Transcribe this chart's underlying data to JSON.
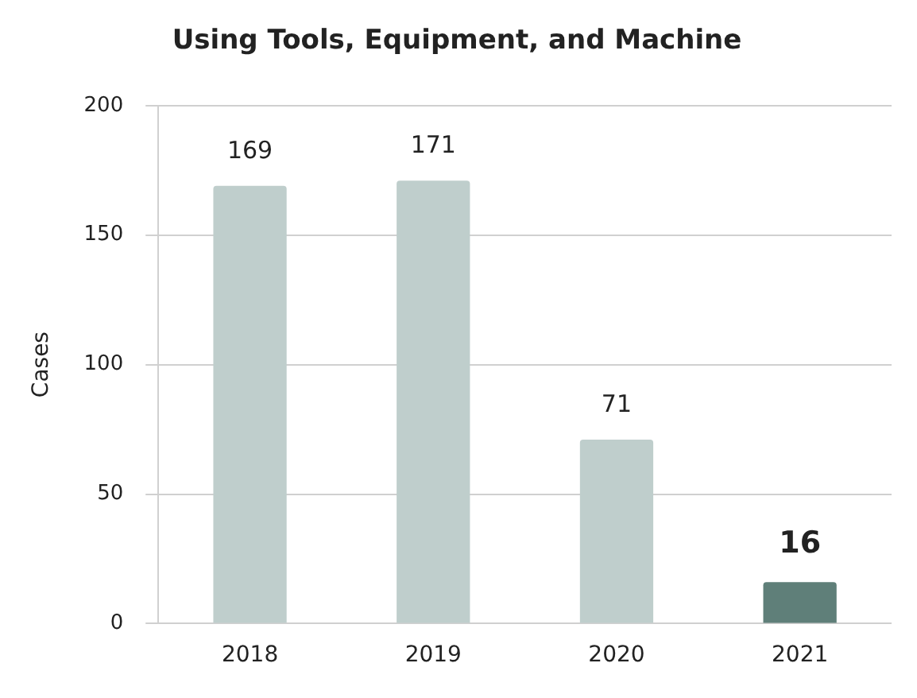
{
  "chart_data": {
    "type": "bar",
    "title": "Using Tools, Equipment, and Machine",
    "ylabel": "Cases",
    "categories": [
      "2018",
      "2019",
      "2020",
      "2021"
    ],
    "values": [
      169,
      171,
      71,
      16
    ],
    "colors": [
      "#bfcecc",
      "#bfcecc",
      "#bfcecc",
      "#5f7f79"
    ],
    "ylim": [
      0,
      200
    ],
    "yticks": [
      0,
      50,
      100,
      150,
      200
    ],
    "grid": "y",
    "data_labels": true,
    "legend": false
  }
}
